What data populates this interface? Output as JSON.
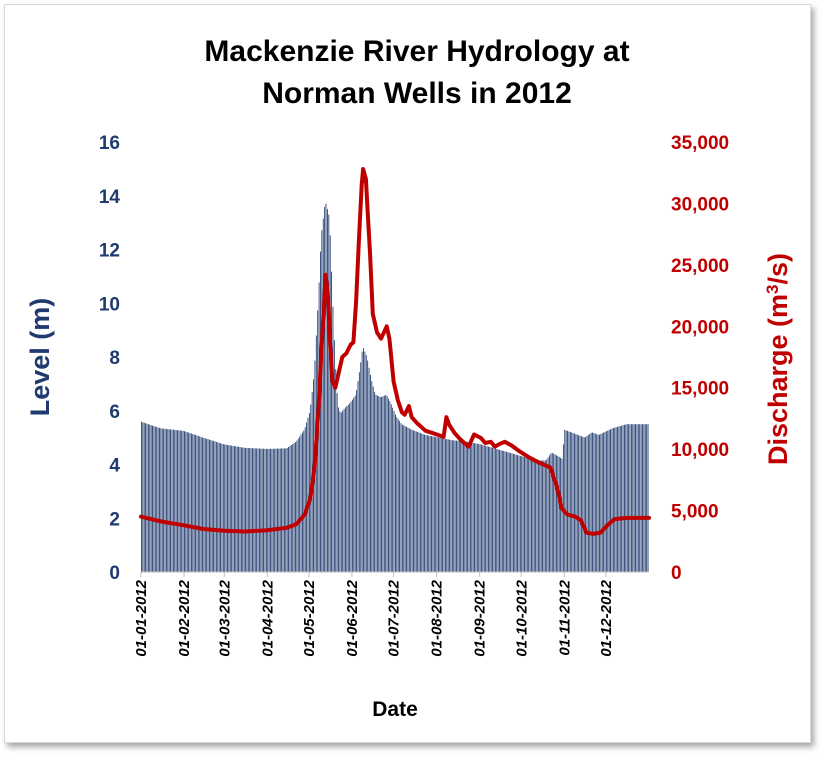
{
  "chart_data": {
    "type": "bar+line",
    "title_lines": [
      "Mackenzie River Hydrology at",
      "Norman Wells in 2012"
    ],
    "xlabel": "Date",
    "ylabel_left": "Level (m)",
    "ylabel_right_main": "Discharge (m",
    "ylabel_right_sup": "3",
    "ylabel_right_tail": "/s)",
    "x_ticks": [
      "01-01-2012",
      "01-02-2012",
      "01-03-2012",
      "01-04-2012",
      "01-05-2012",
      "01-06-2012",
      "01-07-2012",
      "01-08-2012",
      "01-09-2012",
      "01-10-2012",
      "01-11-2012",
      "01-12-2012"
    ],
    "x_tick_days": [
      0,
      31,
      60,
      91,
      121,
      152,
      182,
      213,
      244,
      274,
      305,
      335
    ],
    "x_range_days": [
      0,
      366
    ],
    "y_left": {
      "min": 0,
      "max": 16,
      "ticks": [
        "0",
        "2",
        "4",
        "6",
        "8",
        "10",
        "12",
        "14",
        "16"
      ]
    },
    "y_right": {
      "min": 0,
      "max": 35000,
      "ticks": [
        "0",
        "5,000",
        "10,000",
        "15,000",
        "20,000",
        "25,000",
        "30,000",
        "35,000"
      ]
    },
    "colors": {
      "bars": "#1f3a6e",
      "bar_gap": "#ffffff",
      "line": "#c00000"
    },
    "series": [
      {
        "name": "Level (m)",
        "axis": "left",
        "kind": "bar",
        "points": [
          [
            0,
            5.6
          ],
          [
            14,
            5.35
          ],
          [
            31,
            5.25
          ],
          [
            45,
            5.0
          ],
          [
            60,
            4.75
          ],
          [
            75,
            4.62
          ],
          [
            91,
            4.58
          ],
          [
            105,
            4.6
          ],
          [
            112,
            4.85
          ],
          [
            118,
            5.3
          ],
          [
            122,
            6.0
          ],
          [
            125,
            7.4
          ],
          [
            128,
            10.2
          ],
          [
            130,
            12.5
          ],
          [
            133,
            13.8
          ],
          [
            136,
            13.2
          ],
          [
            138,
            10.5
          ],
          [
            140,
            8.0
          ],
          [
            142,
            6.2
          ],
          [
            144,
            5.9
          ],
          [
            147,
            6.1
          ],
          [
            151,
            6.3
          ],
          [
            155,
            6.6
          ],
          [
            158,
            7.6
          ],
          [
            160,
            8.4
          ],
          [
            163,
            8.0
          ],
          [
            166,
            7.2
          ],
          [
            169,
            6.6
          ],
          [
            173,
            6.5
          ],
          [
            177,
            6.6
          ],
          [
            180,
            6.3
          ],
          [
            184,
            5.8
          ],
          [
            188,
            5.5
          ],
          [
            195,
            5.3
          ],
          [
            205,
            5.1
          ],
          [
            215,
            5.0
          ],
          [
            225,
            4.9
          ],
          [
            235,
            4.85
          ],
          [
            245,
            4.75
          ],
          [
            255,
            4.6
          ],
          [
            265,
            4.45
          ],
          [
            275,
            4.3
          ],
          [
            285,
            4.15
          ],
          [
            292,
            4.15
          ],
          [
            296,
            4.45
          ],
          [
            301,
            4.3
          ],
          [
            304,
            4.2
          ],
          [
            305,
            5.3
          ],
          [
            310,
            5.2
          ],
          [
            315,
            5.1
          ],
          [
            320,
            5.0
          ],
          [
            325,
            5.2
          ],
          [
            330,
            5.1
          ],
          [
            340,
            5.35
          ],
          [
            350,
            5.5
          ],
          [
            366,
            5.5
          ]
        ]
      },
      {
        "name": "Discharge (m3/s)",
        "axis": "right",
        "kind": "line",
        "points": [
          [
            0,
            4500
          ],
          [
            15,
            4100
          ],
          [
            31,
            3800
          ],
          [
            45,
            3500
          ],
          [
            60,
            3350
          ],
          [
            75,
            3300
          ],
          [
            91,
            3400
          ],
          [
            105,
            3600
          ],
          [
            112,
            3900
          ],
          [
            118,
            4700
          ],
          [
            122,
            6000
          ],
          [
            125,
            8500
          ],
          [
            128,
            13500
          ],
          [
            130,
            18000
          ],
          [
            132,
            22000
          ],
          [
            133,
            24200
          ],
          [
            135,
            22000
          ],
          [
            136,
            19000
          ],
          [
            138,
            15500
          ],
          [
            140,
            15000
          ],
          [
            142,
            16000
          ],
          [
            145,
            17500
          ],
          [
            148,
            17800
          ],
          [
            151,
            18500
          ],
          [
            153,
            18700
          ],
          [
            155,
            22000
          ],
          [
            157,
            27000
          ],
          [
            159,
            31500
          ],
          [
            160,
            32800
          ],
          [
            162,
            32000
          ],
          [
            163,
            30000
          ],
          [
            165,
            26000
          ],
          [
            167,
            21000
          ],
          [
            170,
            19500
          ],
          [
            173,
            19000
          ],
          [
            175,
            19500
          ],
          [
            177,
            20000
          ],
          [
            179,
            19000
          ],
          [
            182,
            15500
          ],
          [
            185,
            14000
          ],
          [
            188,
            13000
          ],
          [
            190,
            12800
          ],
          [
            193,
            13500
          ],
          [
            195,
            12600
          ],
          [
            199,
            12100
          ],
          [
            205,
            11500
          ],
          [
            213,
            11200
          ],
          [
            218,
            11000
          ],
          [
            220,
            12600
          ],
          [
            222,
            12000
          ],
          [
            226,
            11300
          ],
          [
            230,
            10800
          ],
          [
            236,
            10200
          ],
          [
            240,
            11200
          ],
          [
            245,
            10900
          ],
          [
            248,
            10500
          ],
          [
            252,
            10600
          ],
          [
            255,
            10200
          ],
          [
            258,
            10400
          ],
          [
            262,
            10600
          ],
          [
            267,
            10300
          ],
          [
            273,
            9800
          ],
          [
            280,
            9300
          ],
          [
            287,
            8900
          ],
          [
            295,
            8500
          ],
          [
            300,
            6800
          ],
          [
            303,
            5200
          ],
          [
            307,
            4700
          ],
          [
            313,
            4500
          ],
          [
            317,
            4200
          ],
          [
            321,
            3200
          ],
          [
            326,
            3100
          ],
          [
            331,
            3200
          ],
          [
            336,
            3800
          ],
          [
            341,
            4300
          ],
          [
            350,
            4400
          ],
          [
            366,
            4400
          ]
        ]
      }
    ]
  }
}
